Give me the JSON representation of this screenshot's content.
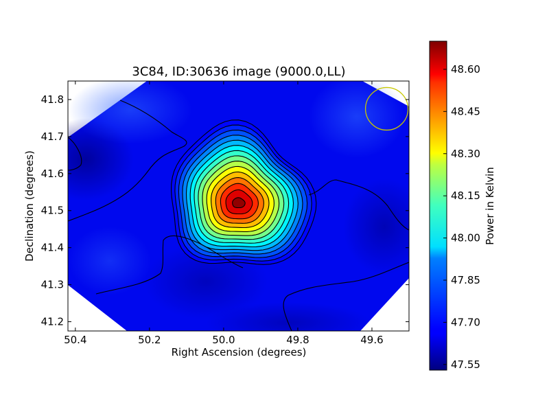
{
  "chart_data": {
    "type": "heatmap",
    "title": "3C84, ID:30636 image (9000.0,LL)",
    "xlabel": "Right Ascension (degrees)",
    "ylabel": "Declination (degrees)",
    "xlim": [
      50.42,
      49.5
    ],
    "ylim": [
      41.175,
      41.85
    ],
    "x_ticks": [
      "50.4",
      "50.2",
      "50.0",
      "49.8",
      "49.6"
    ],
    "y_ticks": [
      "41.2",
      "41.3",
      "41.4",
      "41.5",
      "41.6",
      "41.7",
      "41.8"
    ],
    "colormap": "jet",
    "colorbar": {
      "label": "Power in Kelvin",
      "range": [
        47.53,
        48.7
      ],
      "ticks": [
        "47.55",
        "47.70",
        "47.85",
        "48.00",
        "48.15",
        "48.30",
        "48.45",
        "48.60"
      ]
    },
    "peak": {
      "ra": 49.96,
      "dec": 41.52,
      "value": 48.68
    },
    "background_value": 47.64,
    "contour_count": 15,
    "beam": {
      "ra": 49.56,
      "dec": 41.775,
      "color": "#c8c800"
    },
    "grid": false
  }
}
